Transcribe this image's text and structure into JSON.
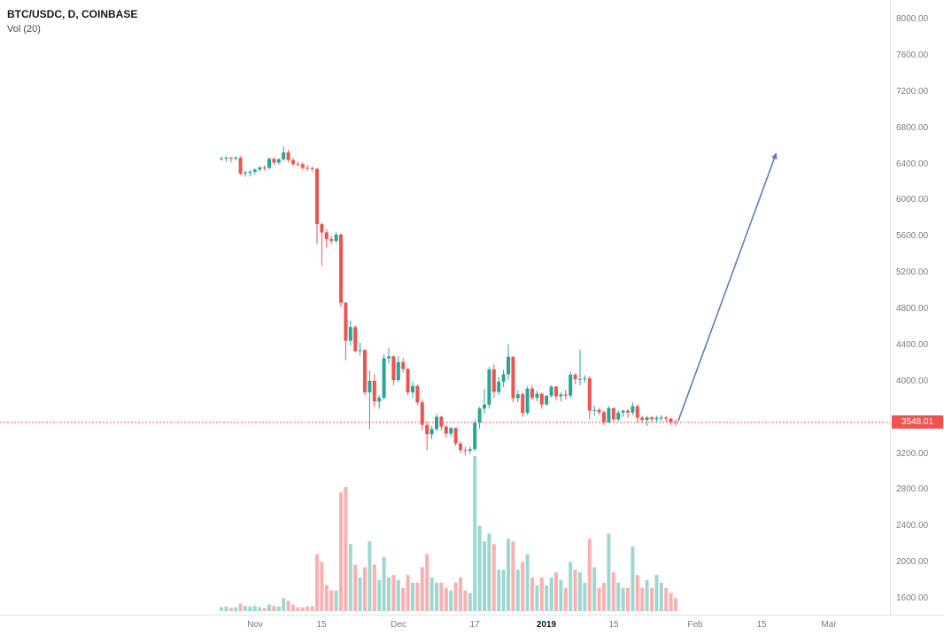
{
  "legend": {
    "symbol_title": "BTC/USDC, D, COINBASE",
    "indicator_label": "Vol (20)"
  },
  "colors": {
    "up": "#26a69a",
    "down": "#ef5350",
    "price_line": "#ef5350",
    "badge_bg": "#ef5350",
    "arrow": "#5d7cc2",
    "axis_text": "#787b86",
    "axis_border": "#e0e3eb"
  },
  "chart_data": {
    "type": "candlestick",
    "symbol": "BTC/USDC",
    "interval": "D",
    "exchange": "COINBASE",
    "indicator": "Vol (20)",
    "last_price": 3548.01,
    "last_price_label": "3548.01",
    "price_line": 3548.01,
    "y_axis": {
      "min": 1600,
      "max": 8000,
      "ticks": [
        "8000.00",
        "7600.00",
        "7200.00",
        "6800.00",
        "6400.00",
        "6000.00",
        "5600.00",
        "5200.00",
        "4800.00",
        "4400.00",
        "4000.00",
        "3200.00",
        "2800.00",
        "2400.00",
        "2000.00",
        "1600.00"
      ]
    },
    "x_axis": {
      "labels": [
        {
          "text": "Nov",
          "day": 7,
          "bold": false
        },
        {
          "text": "15",
          "day": 21,
          "bold": false
        },
        {
          "text": "Dec",
          "day": 37,
          "bold": false
        },
        {
          "text": "17",
          "day": 53,
          "bold": false
        },
        {
          "text": "2019",
          "day": 68,
          "bold": true
        },
        {
          "text": "15",
          "day": 82,
          "bold": false
        },
        {
          "text": "Feb",
          "day": 99,
          "bold": false
        },
        {
          "text": "15",
          "day": 113,
          "bold": false
        },
        {
          "text": "Mar",
          "day": 127,
          "bold": false
        }
      ]
    },
    "annotation_arrow": {
      "from_day": 95.5,
      "from_price": 3560,
      "to_day": 116,
      "to_price": 6520
    },
    "columns": [
      "date",
      "open",
      "high",
      "low",
      "close",
      "volume"
    ],
    "candles": [
      [
        "2018-10-25",
        6462,
        6485,
        6440,
        6466,
        1.5
      ],
      [
        "2018-10-26",
        6466,
        6490,
        6430,
        6474,
        1.8
      ],
      [
        "2018-10-27",
        6474,
        6480,
        6420,
        6462,
        1.2
      ],
      [
        "2018-10-28",
        6462,
        6490,
        6440,
        6473,
        1.5
      ],
      [
        "2018-10-29",
        6473,
        6490,
        6280,
        6297,
        3.0
      ],
      [
        "2018-10-30",
        6297,
        6330,
        6260,
        6310,
        2.0
      ],
      [
        "2018-10-31",
        6310,
        6340,
        6265,
        6317,
        1.8
      ],
      [
        "2018-11-01",
        6317,
        6355,
        6290,
        6341,
        2.0
      ],
      [
        "2018-11-02",
        6341,
        6380,
        6320,
        6364,
        1.5
      ],
      [
        "2018-11-03",
        6364,
        6385,
        6330,
        6361,
        1.2
      ],
      [
        "2018-11-04",
        6361,
        6480,
        6340,
        6461,
        2.5
      ],
      [
        "2018-11-05",
        6461,
        6475,
        6390,
        6419,
        2.0
      ],
      [
        "2018-11-06",
        6419,
        6465,
        6395,
        6456,
        1.8
      ],
      [
        "2018-11-07",
        6456,
        6598,
        6437,
        6530,
        5.0
      ],
      [
        "2018-11-08",
        6530,
        6560,
        6420,
        6446,
        4.0
      ],
      [
        "2018-11-09",
        6446,
        6470,
        6380,
        6403,
        2.5
      ],
      [
        "2018-11-10",
        6403,
        6430,
        6380,
        6401,
        1.5
      ],
      [
        "2018-11-11",
        6401,
        6420,
        6340,
        6361,
        1.5
      ],
      [
        "2018-11-12",
        6361,
        6390,
        6330,
        6357,
        1.8
      ],
      [
        "2018-11-13",
        6357,
        6375,
        6320,
        6350,
        2.0
      ],
      [
        "2018-11-14",
        6350,
        6360,
        5513,
        5738,
        22
      ],
      [
        "2018-11-15",
        5738,
        5754,
        5280,
        5648,
        19
      ],
      [
        "2018-11-16",
        5648,
        5680,
        5480,
        5575,
        10
      ],
      [
        "2018-11-17",
        5575,
        5610,
        5520,
        5554,
        8
      ],
      [
        "2018-11-18",
        5554,
        5650,
        5530,
        5623,
        8
      ],
      [
        "2018-11-19",
        5623,
        5640,
        4821,
        4871,
        46
      ],
      [
        "2018-11-20",
        4871,
        4880,
        4237,
        4451,
        48
      ],
      [
        "2018-11-21",
        4451,
        4670,
        4400,
        4602,
        26
      ],
      [
        "2018-11-22",
        4602,
        4620,
        4320,
        4337,
        18
      ],
      [
        "2018-11-23",
        4337,
        4430,
        4290,
        4347,
        13
      ],
      [
        "2018-11-24",
        4347,
        4360,
        3850,
        3880,
        17
      ],
      [
        "2018-11-25",
        3880,
        4120,
        3475,
        4009,
        27
      ],
      [
        "2018-11-26",
        4009,
        4080,
        3720,
        3779,
        18
      ],
      [
        "2018-11-27",
        3779,
        3850,
        3700,
        3820,
        12
      ],
      [
        "2018-11-28",
        3820,
        4300,
        3800,
        4257,
        21
      ],
      [
        "2018-11-29",
        4257,
        4370,
        4200,
        4278,
        13
      ],
      [
        "2018-11-30",
        4278,
        4290,
        3960,
        4017,
        14
      ],
      [
        "2018-12-01",
        4017,
        4280,
        3990,
        4214,
        12
      ],
      [
        "2018-12-02",
        4214,
        4260,
        4100,
        4139,
        9
      ],
      [
        "2018-12-03",
        4139,
        4150,
        3850,
        3880,
        14
      ],
      [
        "2018-12-04",
        3880,
        4000,
        3820,
        3950,
        11
      ],
      [
        "2018-12-05",
        3950,
        3970,
        3740,
        3770,
        11
      ],
      [
        "2018-12-06",
        3770,
        3800,
        3460,
        3521,
        17
      ],
      [
        "2018-12-07",
        3521,
        3560,
        3241,
        3419,
        22
      ],
      [
        "2018-12-08",
        3419,
        3510,
        3360,
        3476,
        13
      ],
      [
        "2018-12-09",
        3476,
        3640,
        3450,
        3611,
        11
      ],
      [
        "2018-12-10",
        3611,
        3620,
        3460,
        3502,
        11
      ],
      [
        "2018-12-11",
        3502,
        3520,
        3380,
        3424,
        9
      ],
      [
        "2018-12-12",
        3424,
        3500,
        3390,
        3486,
        8
      ],
      [
        "2018-12-13",
        3486,
        3490,
        3290,
        3315,
        11
      ],
      [
        "2018-12-14",
        3315,
        3340,
        3210,
        3242,
        13
      ],
      [
        "2018-12-15",
        3242,
        3280,
        3184,
        3236,
        8
      ],
      [
        "2018-12-16",
        3236,
        3280,
        3200,
        3252,
        7
      ],
      [
        "2018-12-17",
        3252,
        3580,
        3230,
        3545,
        60
      ],
      [
        "2018-12-18",
        3545,
        3720,
        3480,
        3702,
        33
      ],
      [
        "2018-12-19",
        3702,
        3920,
        3640,
        3745,
        27
      ],
      [
        "2018-12-20",
        3745,
        4160,
        3700,
        4134,
        30
      ],
      [
        "2018-12-21",
        4134,
        4190,
        3820,
        3884,
        26
      ],
      [
        "2018-12-22",
        3884,
        4050,
        3850,
        3999,
        16
      ],
      [
        "2018-12-23",
        3999,
        4130,
        3940,
        4079,
        16
      ],
      [
        "2018-12-24",
        4079,
        4412,
        4020,
        4273,
        28
      ],
      [
        "2018-12-25",
        4273,
        4280,
        3770,
        3815,
        27
      ],
      [
        "2018-12-26",
        3815,
        3900,
        3770,
        3860,
        16
      ],
      [
        "2018-12-27",
        3860,
        3880,
        3610,
        3654,
        19
      ],
      [
        "2018-12-28",
        3654,
        3950,
        3630,
        3923,
        22
      ],
      [
        "2018-12-29",
        3923,
        3960,
        3790,
        3820,
        13
      ],
      [
        "2018-12-30",
        3820,
        3900,
        3780,
        3865,
        10
      ],
      [
        "2018-12-31",
        3865,
        3880,
        3700,
        3747,
        13
      ],
      [
        "2019-01-01",
        3747,
        3850,
        3730,
        3843,
        10
      ],
      [
        "2019-01-02",
        3843,
        3960,
        3820,
        3943,
        13
      ],
      [
        "2019-01-03",
        3943,
        3950,
        3790,
        3836,
        15
      ],
      [
        "2019-01-04",
        3836,
        3880,
        3780,
        3857,
        12
      ],
      [
        "2019-01-05",
        3857,
        3910,
        3800,
        3845,
        9
      ],
      [
        "2019-01-06",
        3845,
        4110,
        3820,
        4076,
        19
      ],
      [
        "2019-01-07",
        4076,
        4090,
        3970,
        4025,
        16
      ],
      [
        "2019-01-08",
        4025,
        4350,
        3960,
        4030,
        15
      ],
      [
        "2019-01-09",
        4030,
        4070,
        3990,
        4035,
        11
      ],
      [
        "2019-01-10",
        4035,
        4060,
        3580,
        3678,
        28
      ],
      [
        "2019-01-11",
        3678,
        3730,
        3620,
        3687,
        17
      ],
      [
        "2019-01-12",
        3687,
        3710,
        3630,
        3661,
        9
      ],
      [
        "2019-01-13",
        3661,
        3680,
        3520,
        3552,
        11
      ],
      [
        "2019-01-14",
        3552,
        3730,
        3540,
        3706,
        30
      ],
      [
        "2019-01-15",
        3706,
        3710,
        3560,
        3583,
        15
      ],
      [
        "2019-01-16",
        3583,
        3680,
        3560,
        3657,
        11
      ],
      [
        "2019-01-17",
        3657,
        3690,
        3610,
        3678,
        9
      ],
      [
        "2019-01-18",
        3678,
        3700,
        3600,
        3657,
        9
      ],
      [
        "2019-01-19",
        3657,
        3770,
        3630,
        3728,
        25
      ],
      [
        "2019-01-20",
        3728,
        3750,
        3540,
        3601,
        14
      ],
      [
        "2019-01-21",
        3601,
        3620,
        3550,
        3576,
        9
      ],
      [
        "2019-01-22",
        3576,
        3620,
        3510,
        3604,
        12
      ],
      [
        "2019-01-23",
        3604,
        3620,
        3550,
        3585,
        9
      ],
      [
        "2019-01-24",
        3585,
        3620,
        3540,
        3600,
        14
      ],
      [
        "2019-01-25",
        3600,
        3630,
        3560,
        3602,
        11
      ],
      [
        "2019-01-26",
        3602,
        3620,
        3550,
        3590,
        9
      ],
      [
        "2019-01-27",
        3590,
        3600,
        3520,
        3551,
        7
      ],
      [
        "2019-01-28",
        3551,
        3580,
        3510,
        3548,
        5
      ]
    ]
  }
}
